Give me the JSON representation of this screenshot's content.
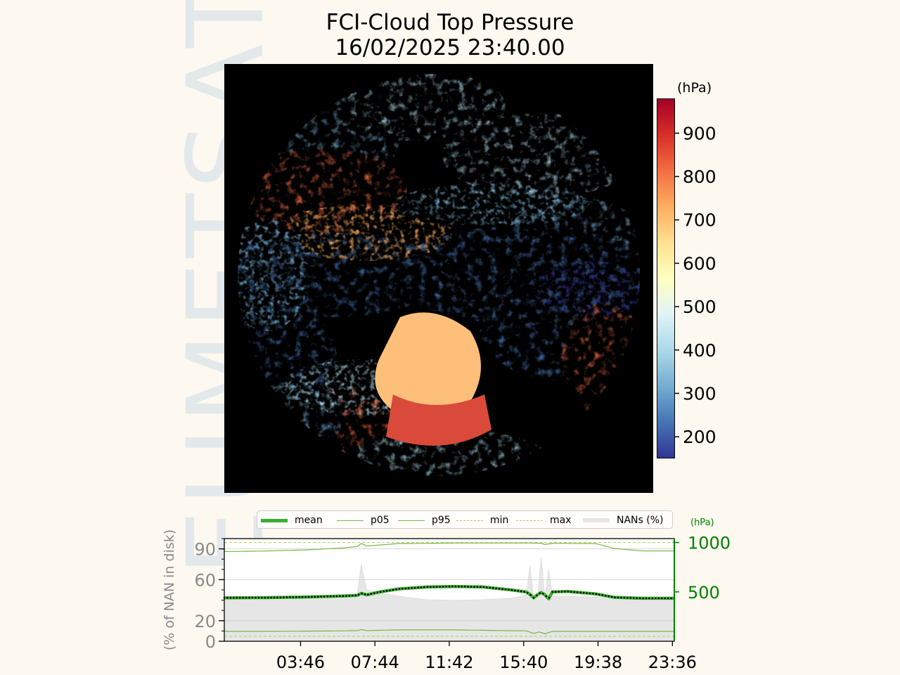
{
  "watermark": "EUMETSAT",
  "title": "FCI-Cloud Top Pressure",
  "subtitle": "16/02/2025 23:40.00",
  "colors": {
    "background": "#fdf9f1",
    "mean": "#3cae2e",
    "percentile": "#7ab544",
    "minmax": "#a7d15a",
    "nan_fill": "#e6e6e6",
    "right_axis": "#008000",
    "left_axis": "#8a8a8a"
  },
  "chart_data": [
    {
      "type": "heatmap",
      "description_of_map": "full-disk image",
      "colorbar": {
        "unit": "(hPa)",
        "range": [
          150,
          980
        ],
        "ticks": [
          200,
          300,
          400,
          500,
          600,
          700,
          800,
          900
        ],
        "colormap": [
          "#313695",
          "#4575b4",
          "#74add1",
          "#abd9e9",
          "#e0f3f8",
          "#ffffbf",
          "#fee090",
          "#fdae61",
          "#f46d43",
          "#d73027",
          "#a50026"
        ]
      }
    },
    {
      "type": "line",
      "legend": [
        "mean",
        "p05",
        "p95",
        "min",
        "max",
        "NANs (%)"
      ],
      "legend_position": "top",
      "x_ticks": [
        "03:46",
        "07:44",
        "11:42",
        "15:40",
        "19:38",
        "23:36"
      ],
      "x_tick_hours": [
        3.767,
        7.733,
        11.7,
        15.667,
        19.633,
        23.6
      ],
      "xlim_hours": [
        -0.3,
        23.7
      ],
      "left_axis": {
        "label": "(% of NAN in disk)",
        "ticks": [
          0,
          20,
          60,
          90
        ],
        "ylim": [
          0,
          100
        ]
      },
      "right_axis": {
        "unit": "(hPa)",
        "ticks": [
          500,
          1000
        ],
        "ylim": [
          0,
          1040
        ]
      },
      "series": [
        {
          "name": "max",
          "hours": [
            -0.3,
            23.7
          ],
          "values": [
            1000,
            1000
          ]
        },
        {
          "name": "min",
          "hours": [
            -0.3,
            23.7
          ],
          "values": [
            50,
            50
          ]
        },
        {
          "name": "p95",
          "hours": [
            -0.3,
            0.5,
            2,
            4,
            6,
            6.8,
            7.0,
            7.3,
            9,
            12,
            16,
            16.6,
            16.8,
            17.2,
            19.5,
            20.5,
            22,
            23.7
          ],
          "values": [
            910,
            910,
            915,
            925,
            945,
            960,
            990,
            965,
            990,
            995,
            995,
            993,
            980,
            993,
            990,
            940,
            915,
            915
          ]
        },
        {
          "name": "p05",
          "hours": [
            -0.3,
            2,
            6,
            6.8,
            7.0,
            7.3,
            9,
            12,
            15.8,
            16.2,
            16.5,
            16.8,
            17.2,
            20,
            23.7
          ],
          "values": [
            100,
            100,
            105,
            108,
            118,
            108,
            115,
            115,
            105,
            80,
            95,
            75,
            100,
            100,
            100
          ]
        },
        {
          "name": "mean",
          "hours": [
            -0.3,
            2,
            4,
            6,
            6.8,
            7.0,
            7.3,
            8,
            9,
            10.5,
            12,
            13.5,
            15,
            15.8,
            16.0,
            16.2,
            16.4,
            16.6,
            16.8,
            17.0,
            17.2,
            18,
            19.5,
            20.5,
            22,
            23.7
          ],
          "values": [
            440,
            442,
            448,
            458,
            465,
            485,
            470,
            500,
            530,
            550,
            555,
            550,
            520,
            500,
            475,
            440,
            470,
            495,
            470,
            430,
            500,
            505,
            480,
            445,
            435,
            435
          ]
        },
        {
          "name": "NANs (%)",
          "hours": [
            -0.3,
            2,
            4,
            6,
            6.8,
            7.0,
            7.3,
            8,
            9,
            10.5,
            12,
            13.5,
            15,
            15.8,
            16.0,
            16.2,
            16.4,
            16.6,
            16.8,
            17.0,
            17.2,
            18,
            19.5,
            20.5,
            22,
            23.7
          ],
          "values": [
            41,
            41.5,
            42.5,
            43.5,
            46,
            75,
            50,
            47,
            44,
            40.5,
            40,
            40.5,
            42,
            45,
            74,
            43,
            42,
            82,
            44,
            70,
            44,
            44,
            43,
            42,
            41,
            41
          ]
        }
      ]
    }
  ]
}
